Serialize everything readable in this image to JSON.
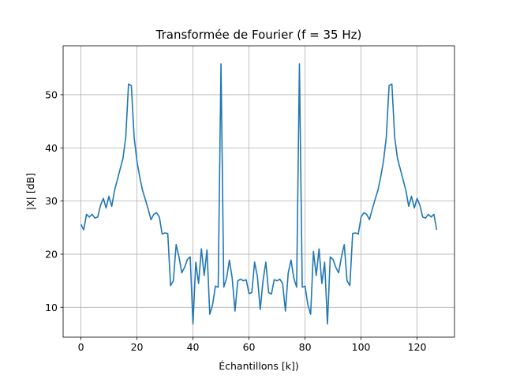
{
  "chart_data": {
    "type": "line",
    "title": "Transformée de Fourier (f = 35 Hz)",
    "xlabel": "Échantillons [k])",
    "ylabel": "|X| [dB]",
    "xlim": [
      -6.35,
      133.35
    ],
    "ylim": [
      4.4,
      59.2
    ],
    "x_ticks": [
      0,
      20,
      40,
      60,
      80,
      100,
      120
    ],
    "y_ticks": [
      10,
      20,
      30,
      40,
      50
    ],
    "grid": true,
    "line_color": "#1f77b4",
    "series": [
      {
        "x": [
          0,
          1,
          2,
          3,
          4,
          5,
          6,
          7,
          8,
          9,
          10,
          11,
          12,
          13,
          14,
          15,
          16,
          17,
          18,
          19,
          20,
          21,
          22,
          23,
          24,
          25,
          26,
          27,
          28,
          29,
          30,
          31,
          32,
          33,
          34,
          35,
          36,
          37,
          38,
          39,
          40,
          41,
          42,
          43,
          44,
          45,
          46,
          47,
          48,
          49,
          50,
          51,
          52,
          53,
          54,
          55,
          56,
          57,
          58,
          59,
          60,
          61,
          62,
          63,
          64,
          65,
          66,
          67,
          68,
          69,
          70,
          71,
          72,
          73,
          74,
          75,
          76,
          77,
          78,
          79,
          80,
          81,
          82,
          83,
          84,
          85,
          86,
          87,
          88,
          89,
          90,
          91,
          92,
          93,
          94,
          95,
          96,
          97,
          98,
          99,
          100,
          101,
          102,
          103,
          104,
          105,
          106,
          107,
          108,
          109,
          110,
          111,
          112,
          113,
          114,
          115,
          116,
          117,
          118,
          119,
          120,
          121,
          122,
          123,
          124,
          125,
          126,
          127
        ],
        "values": [
          25.6,
          24.6,
          27.5,
          27.0,
          27.5,
          26.8,
          27.0,
          29.2,
          30.5,
          28.7,
          30.9,
          29.0,
          32.0,
          34.0,
          36.0,
          38.0,
          42.0,
          52.0,
          51.7,
          42.0,
          37.5,
          34.5,
          32.0,
          30.3,
          28.5,
          26.5,
          27.5,
          27.8,
          27.0,
          23.8,
          24.0,
          23.9,
          14.1,
          15.0,
          21.8,
          19.5,
          16.5,
          17.5,
          19.0,
          19.5,
          6.9,
          18.5,
          14.5,
          21.0,
          16.0,
          20.8,
          8.7,
          10.5,
          14.0,
          13.8,
          55.8,
          13.8,
          15.5,
          18.9,
          15.5,
          9.3,
          15.0,
          15.3,
          15.0,
          15.2,
          12.6,
          12.8,
          18.5,
          15.8,
          9.6,
          15.0,
          18.5,
          12.8,
          12.5,
          15.2,
          15.0,
          15.3,
          14.5,
          9.3,
          16.5,
          18.9,
          15.5,
          13.8,
          55.8,
          13.8,
          14.0,
          10.5,
          8.7,
          20.5,
          16.0,
          21.0,
          14.5,
          18.5,
          6.9,
          19.5,
          19.0,
          17.5,
          16.5,
          19.5,
          21.8,
          15.0,
          14.1,
          23.9,
          24.0,
          23.8,
          27.0,
          27.8,
          27.5,
          26.5,
          28.5,
          30.3,
          32.0,
          34.5,
          37.5,
          42.0,
          51.7,
          52.0,
          42.0,
          38.0,
          36.0,
          34.0,
          32.0,
          29.0,
          30.9,
          28.7,
          30.5,
          29.2,
          27.0,
          26.8,
          27.5,
          27.0,
          27.5,
          24.6
        ]
      }
    ]
  }
}
